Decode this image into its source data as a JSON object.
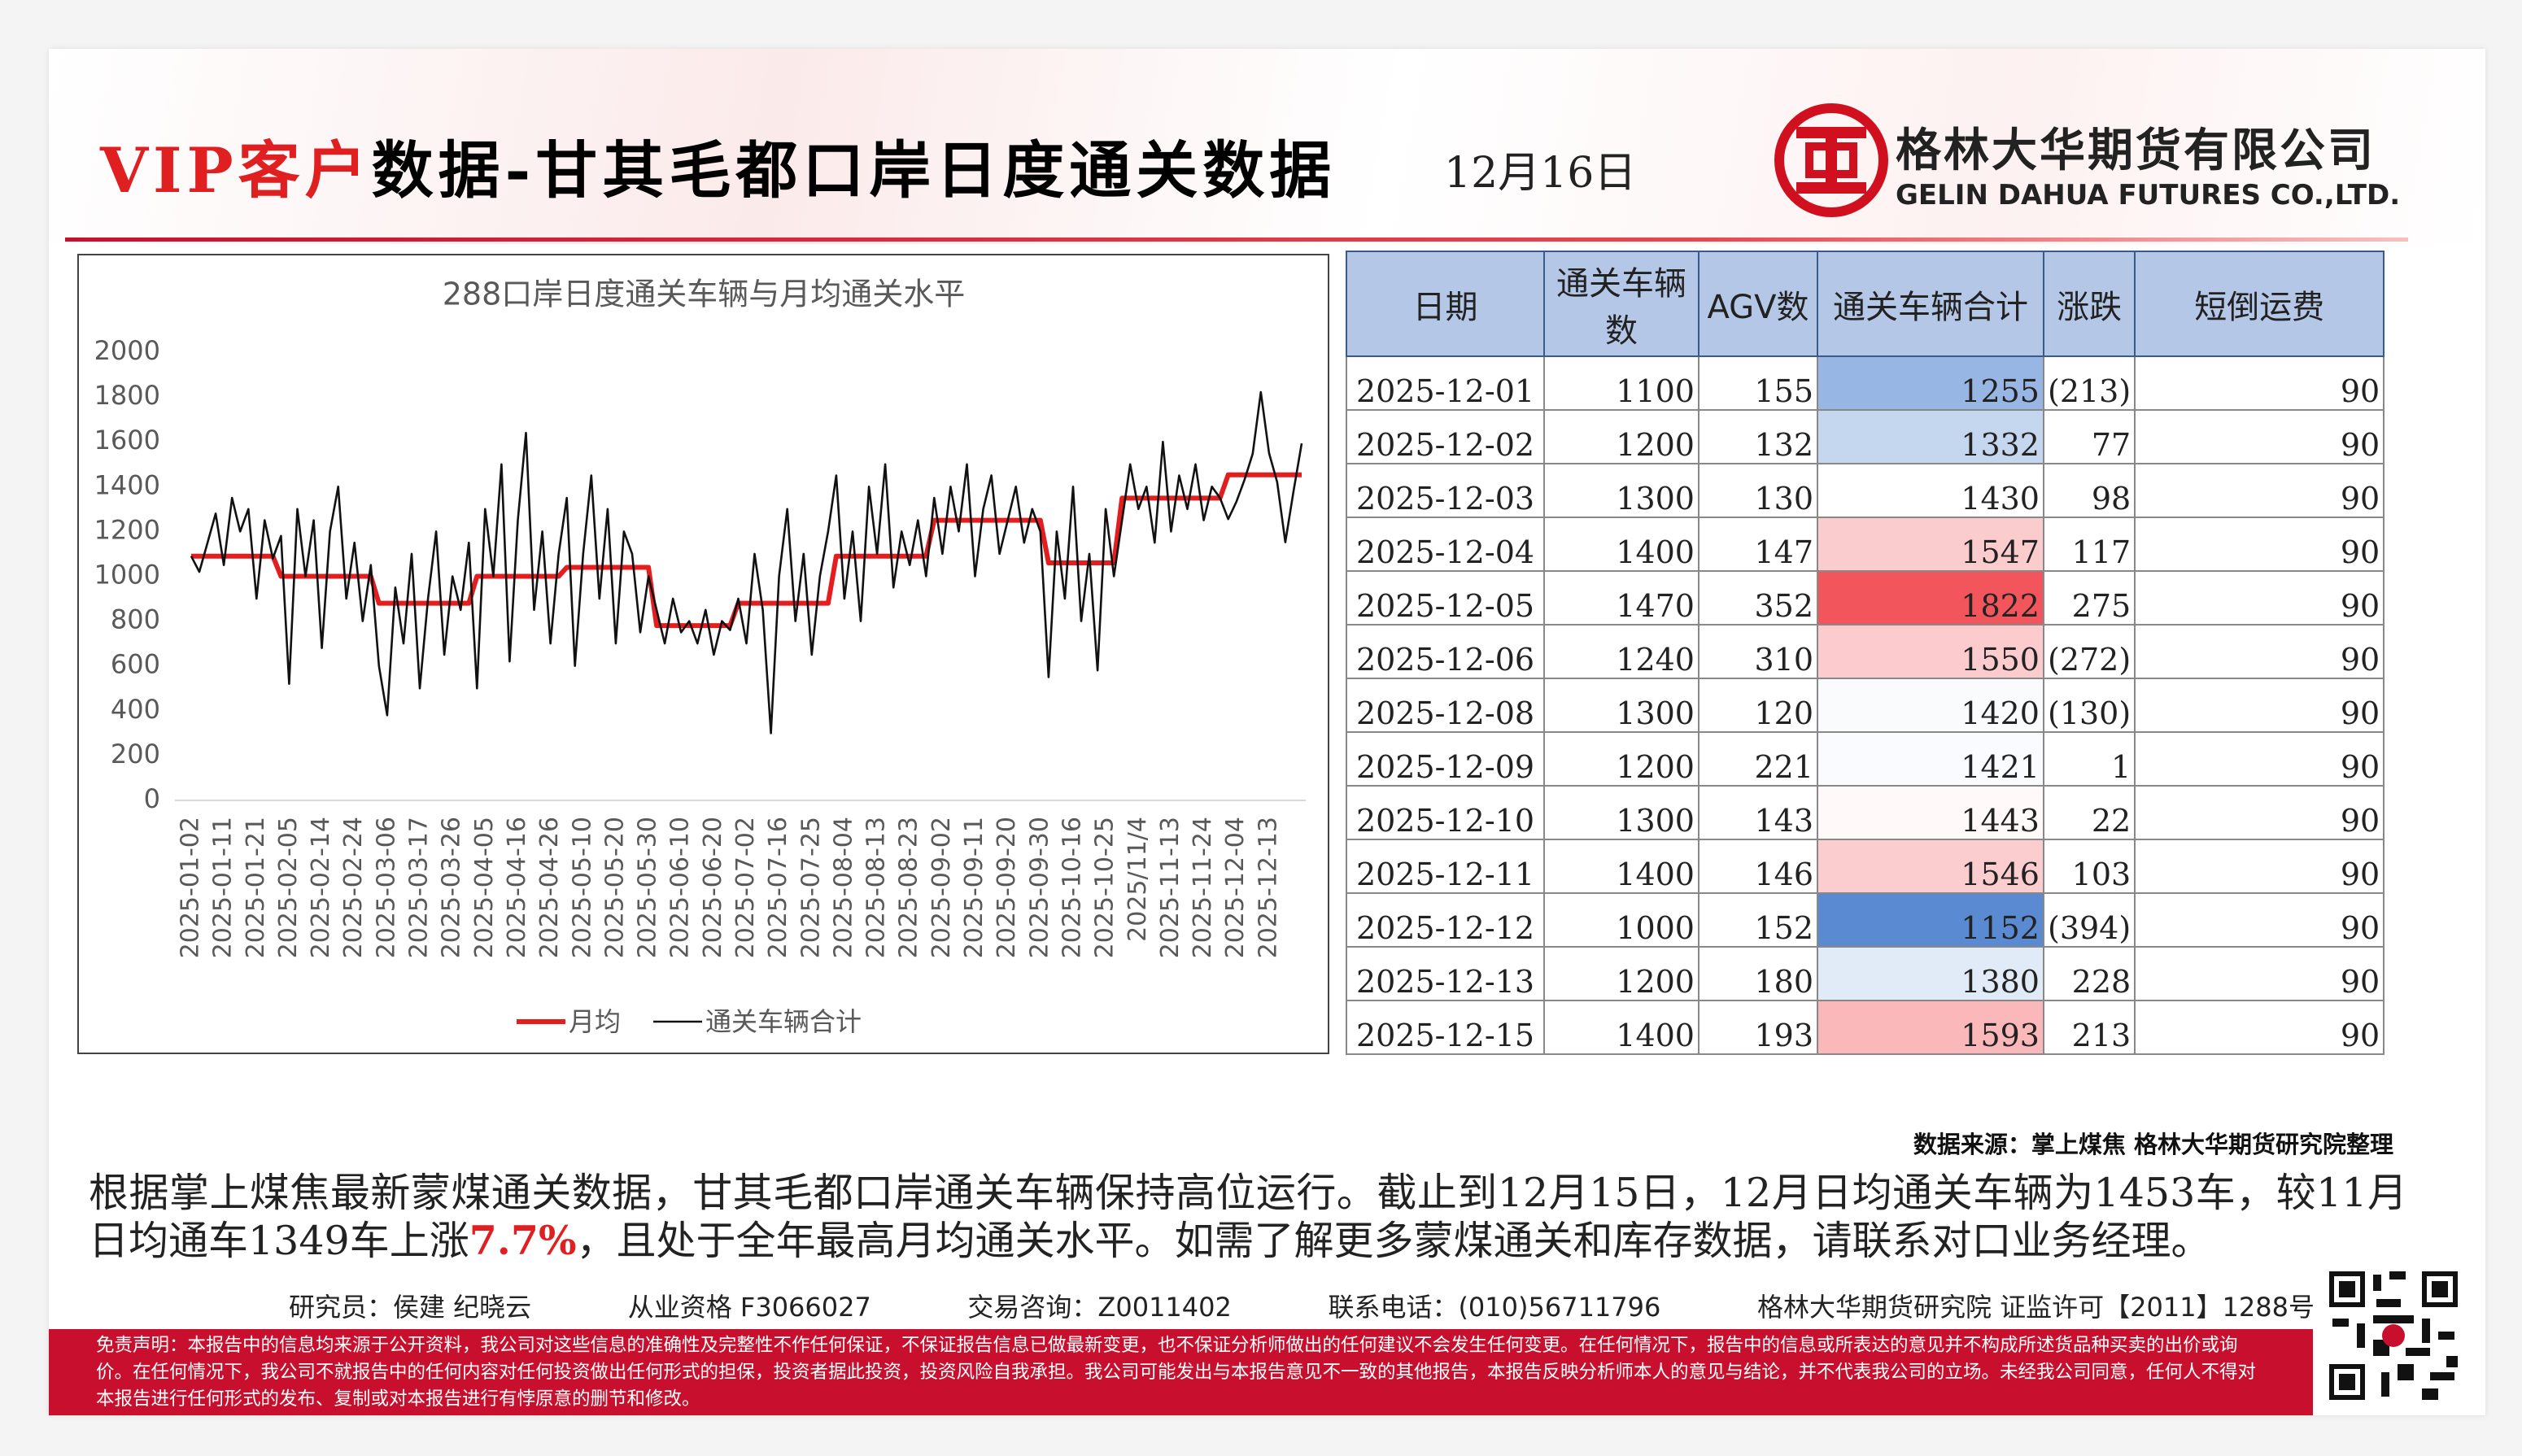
{
  "header": {
    "title_highlight": "VIP客户",
    "title": "数据-甘其毛都口岸日度通关数据",
    "date": "12月16日",
    "company": "格林大华期货有限公司",
    "company_en": "GELIN DAHUA FUTURES CO.,LTD."
  },
  "chart_data": {
    "type": "line",
    "title": "288口岸日度通关车辆与月均通关水平",
    "categories": [
      "2025-01-02",
      null,
      null,
      null,
      "2025-01-11",
      null,
      null,
      null,
      "2025-01-21",
      null,
      null,
      null,
      "2025-02-05",
      null,
      null,
      null,
      "2025-02-14",
      null,
      null,
      null,
      "2025-02-24",
      null,
      null,
      null,
      "2025-03-06",
      null,
      null,
      null,
      "2025-03-17",
      null,
      null,
      null,
      "2025-03-26",
      null,
      null,
      null,
      "2025-04-05",
      null,
      null,
      null,
      "2025-04-16",
      null,
      null,
      null,
      "2025-04-26",
      null,
      null,
      null,
      "2025-05-10",
      null,
      null,
      null,
      "2025-05-20",
      null,
      null,
      null,
      "2025-05-30",
      null,
      null,
      null,
      "2025-06-10",
      null,
      null,
      null,
      "2025-06-20",
      null,
      null,
      null,
      "2025-07-02",
      null,
      null,
      null,
      "2025-07-16",
      null,
      null,
      null,
      "2025-07-25",
      null,
      null,
      null,
      "2025-08-04",
      null,
      null,
      null,
      "2025-08-13",
      null,
      null,
      null,
      "2025-08-23",
      null,
      null,
      null,
      "2025-09-02",
      null,
      null,
      null,
      "2025-09-11",
      null,
      null,
      null,
      "2025-09-20",
      null,
      null,
      null,
      "2025-09-30",
      null,
      null,
      null,
      "2025-10-16",
      null,
      null,
      null,
      "2025-10-25",
      null,
      null,
      null,
      "2025/11/4",
      null,
      null,
      null,
      "2025-11-13",
      null,
      null,
      null,
      "2025-11-24",
      null,
      null,
      null,
      "2025-12-04",
      null,
      null,
      null,
      "2025-12-13",
      null,
      null,
      null,
      null
    ],
    "series": [
      {
        "name": "月均",
        "color": "#e41e1e",
        "values": [
          1090,
          1090,
          1090,
          1090,
          1090,
          1090,
          1090,
          1090,
          1090,
          1090,
          1090,
          1000,
          1000,
          1000,
          1000,
          1000,
          1000,
          1000,
          1000,
          1000,
          1000,
          1000,
          1000,
          880,
          880,
          880,
          880,
          880,
          880,
          880,
          880,
          880,
          880,
          880,
          880,
          1000,
          1000,
          1000,
          1000,
          1000,
          1000,
          1000,
          1000,
          1000,
          1000,
          1000,
          1040,
          1040,
          1040,
          1040,
          1040,
          1040,
          1040,
          1040,
          1040,
          1040,
          1040,
          780,
          780,
          780,
          780,
          780,
          780,
          780,
          780,
          780,
          780,
          880,
          880,
          880,
          880,
          880,
          880,
          880,
          880,
          880,
          880,
          880,
          880,
          1090,
          1090,
          1090,
          1090,
          1090,
          1090,
          1090,
          1090,
          1090,
          1090,
          1090,
          1090,
          1250,
          1250,
          1250,
          1250,
          1250,
          1250,
          1250,
          1250,
          1250,
          1250,
          1250,
          1250,
          1250,
          1250,
          1060,
          1060,
          1060,
          1060,
          1060,
          1060,
          1060,
          1060,
          1060,
          1349,
          1349,
          1349,
          1349,
          1349,
          1349,
          1349,
          1349,
          1349,
          1349,
          1349,
          1349,
          1349,
          1453,
          1453,
          1453,
          1453,
          1453,
          1453,
          1453,
          1453,
          1453,
          1453
        ]
      },
      {
        "name": "通关车辆合计",
        "color": "#111111",
        "values": [
          1090,
          1020,
          1150,
          1280,
          1050,
          1350,
          1200,
          1300,
          900,
          1250,
          1080,
          1180,
          520,
          1300,
          1000,
          1250,
          680,
          1200,
          1400,
          900,
          1150,
          800,
          1050,
          600,
          380,
          950,
          700,
          1100,
          500,
          900,
          1200,
          650,
          1000,
          850,
          1150,
          500,
          1300,
          1000,
          1500,
          620,
          1250,
          1640,
          850,
          1200,
          700,
          1100,
          1350,
          600,
          1100,
          1450,
          900,
          1300,
          700,
          1200,
          1100,
          750,
          1000,
          850,
          700,
          900,
          750,
          800,
          700,
          850,
          650,
          800,
          760,
          900,
          700,
          1100,
          850,
          300,
          1000,
          1300,
          800,
          1100,
          650,
          1000,
          1200,
          1450,
          900,
          1200,
          800,
          1400,
          1100,
          1500,
          950,
          1200,
          1050,
          1250,
          1000,
          1350,
          1100,
          1400,
          1200,
          1500,
          1000,
          1300,
          1450,
          1100,
          1250,
          1400,
          1150,
          1300,
          1200,
          550,
          1200,
          900,
          1400,
          800,
          1100,
          580,
          1300,
          1000,
          1250,
          1500,
          1300,
          1400,
          1150,
          1600,
          1200,
          1450,
          1300,
          1500,
          1250,
          1400,
          1350,
          1255,
          1332,
          1430,
          1547,
          1822,
          1550,
          1420,
          1152,
          1380,
          1593
        ]
      }
    ],
    "ylim": [
      0,
      2000
    ],
    "yticks": [
      0,
      200,
      400,
      600,
      800,
      1000,
      1200,
      1400,
      1600,
      1800,
      2000
    ],
    "grid": false,
    "legend": "bottom"
  },
  "table": {
    "header": [
      "日期",
      "通关车辆数",
      "AGV数",
      "通关车辆合计",
      "涨跌",
      "短倒运费"
    ],
    "rows": [
      [
        "2025-12-01",
        1100,
        155,
        1255,
        "(213)",
        90
      ],
      [
        "2025-12-02",
        1200,
        132,
        1332,
        77,
        90
      ],
      [
        "2025-12-03",
        1300,
        130,
        1430,
        98,
        90
      ],
      [
        "2025-12-04",
        1400,
        147,
        1547,
        117,
        90
      ],
      [
        "2025-12-05",
        1470,
        352,
        1822,
        275,
        90
      ],
      [
        "2025-12-06",
        1240,
        310,
        1550,
        "(272)",
        90
      ],
      [
        "2025-12-08",
        1300,
        120,
        1420,
        "(130)",
        90
      ],
      [
        "2025-12-09",
        1200,
        221,
        1421,
        1,
        90
      ],
      [
        "2025-12-10",
        1300,
        143,
        1443,
        22,
        90
      ],
      [
        "2025-12-11",
        1400,
        146,
        1546,
        103,
        90
      ],
      [
        "2025-12-12",
        1000,
        152,
        1152,
        "(394)",
        90
      ],
      [
        "2025-12-13",
        1200,
        180,
        1380,
        228,
        90
      ],
      [
        "2025-12-15",
        1400,
        193,
        1593,
        213,
        90
      ]
    ],
    "heat_column": 3,
    "heat_colors": {
      "low": "#5a8bd2",
      "mid": "#ffffff",
      "high": "#f2555c"
    }
  },
  "source": "数据来源：掌上煤焦 格林大华期货研究院整理",
  "paragraph": [
    "根据掌上煤焦最新蒙煤通关数据，甘其毛都口岸通关车辆保持高位运行。截止到12月15日，12月日均通关车辆为1453车，较11月日均通车1349车上涨",
    "7.7%",
    "，且处于全年最高月均通关水平。如需了解更多蒙煤通关和库存数据，请联系对口业务经理。"
  ],
  "info": [
    "研究员：侯建 纪晓云",
    "从业资格 F3066027",
    "交易咨询：Z0011402",
    "联系电话：(010)56711796",
    "格林大华期货研究院 证监许可【2011】1288号"
  ],
  "disclaimer": "免责声明：本报告中的信息均来源于公开资料，我公司对这些信息的准确性及完整性不作任何保证，不保证报告信息已做最新变更，也不保证分析师做出的任何建议不会发生任何变更。在任何情况下，报告中的信息或所表达的意见并不构成所述货品种买卖的出价或询价。在任何情况下，我公司不就报告中的任何内容对任何投资做出任何形式的担保，投资者据此投资，投资风险自我承担。我公司可能发出与本报告意见不一致的其他报告，本报告反映分析师本人的意见与结论，并不代表我公司的立场。未经我公司同意，任何人不得对本报告进行任何形式的发布、复制或对本报告进行有悖原意的删节和修改。"
}
